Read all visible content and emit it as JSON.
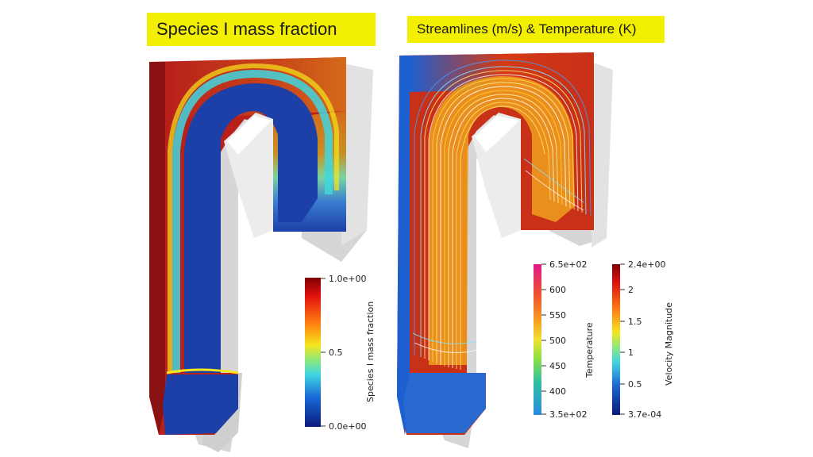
{
  "titles": {
    "left": "Species I mass fraction",
    "right": "Streamlines (m/s) & Temperature (K)"
  },
  "colorbars": {
    "species": {
      "title": "Species I mass fraction",
      "max_label": "1.0e+00",
      "mid_label": "0.5",
      "min_label": "0.0e+00",
      "range": [
        0,
        1
      ]
    },
    "temperature": {
      "title": "Temperature",
      "max_label": "6.5e+02",
      "min_label": "3.5e+02",
      "ticks": [
        "600",
        "550",
        "500",
        "450",
        "400"
      ],
      "range": [
        350,
        650
      ]
    },
    "velocity": {
      "title": "Velocity Magnitude",
      "max_label": "2.4e+00",
      "min_label": "3.7e-04",
      "ticks": [
        "2",
        "1.5",
        "1",
        "0.5"
      ],
      "range": [
        0.00037,
        2.4
      ]
    }
  },
  "colors": {
    "title_bg": "#f2ef00",
    "jet_dark_red": "#7f0000",
    "jet_red": "#d42a14",
    "jet_yellow": "#f5e51a",
    "jet_cyan": "#3fd6e0",
    "jet_blue": "#1d3fa8",
    "jet_dark_blue": "#1a1f6e",
    "shadow_gray": "#d4d4d4"
  }
}
